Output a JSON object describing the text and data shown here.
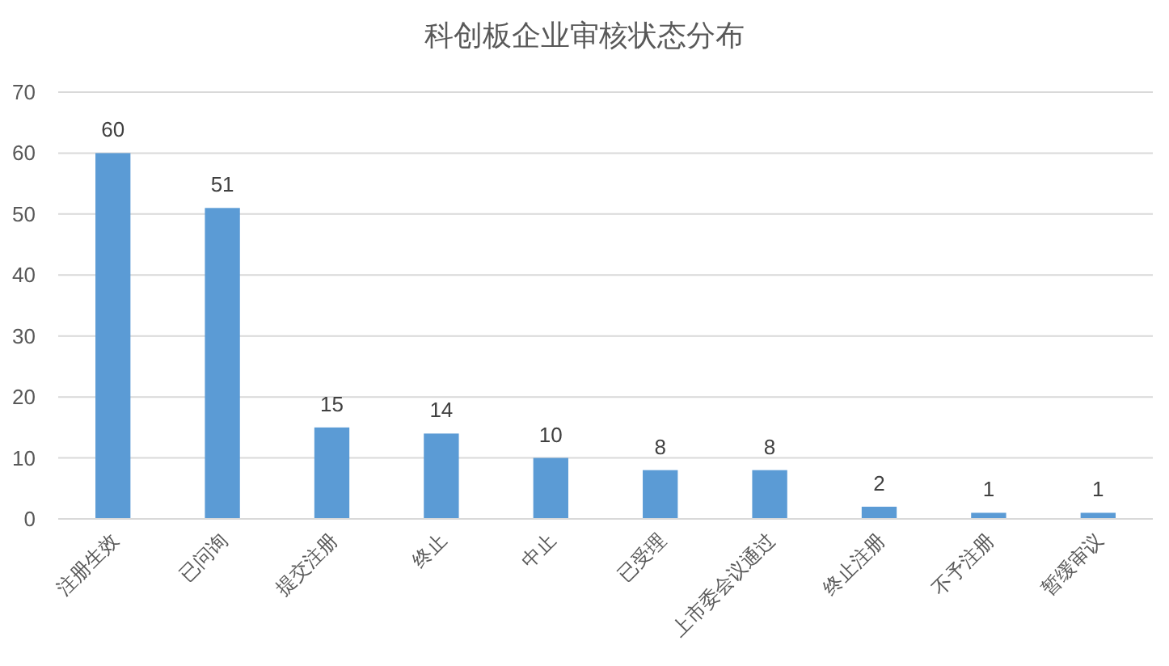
{
  "chart_data": {
    "type": "bar",
    "title": "科创板企业审核状态分布",
    "categories": [
      "注册生效",
      "已问询",
      "提交注册",
      "终止",
      "中止",
      "已受理",
      "上市委会议通过",
      "终止注册",
      "不予注册",
      "暂缓审议"
    ],
    "values": [
      60,
      51,
      15,
      14,
      10,
      8,
      8,
      2,
      1,
      1
    ],
    "color": "#5b9bd5",
    "ylim": [
      0,
      70
    ],
    "yticks": [
      0,
      10,
      20,
      30,
      40,
      50,
      60,
      70
    ],
    "grid": "y",
    "data_labels": true
  }
}
